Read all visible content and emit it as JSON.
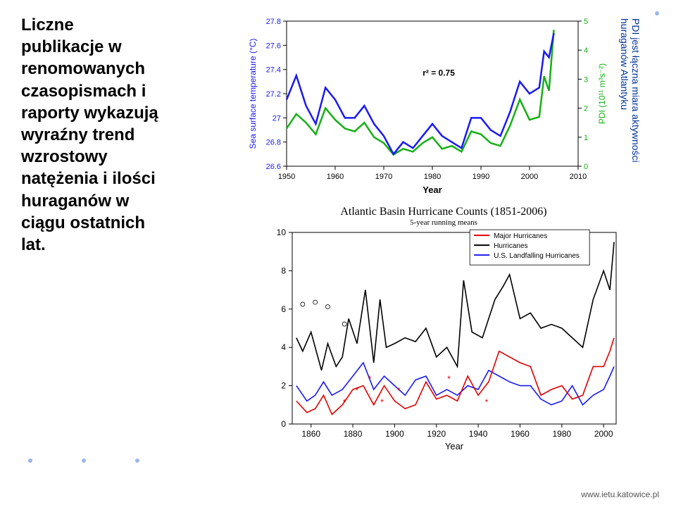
{
  "left_text": {
    "line1": "Liczne",
    "line2": "publikacje w",
    "line3": "renomowanych",
    "line4": "czasopismach i",
    "line5": "raporty wykazują",
    "line6": "wyraźny trend",
    "line7": "wzrostowy",
    "line8": "natężenia i ilości",
    "line9": "huraganów w",
    "line10": "ciągu ostatnich",
    "line11": "lat."
  },
  "vertical_note_line1": "PDI jest łączna miara aktywności",
  "vertical_note_line2": "huraganów Atlantyku",
  "chart1": {
    "ylabel_left": "Sea surface temperature (°C)",
    "ylabel_right": "PDI (10¹¹ m³s⁻²)",
    "xlabel": "Year",
    "r2_label": "r² = 0.75",
    "yticks_left": [
      26.6,
      26.8,
      27,
      27.2,
      27.4,
      27.6,
      27.8
    ],
    "yticks_right": [
      0,
      1,
      2,
      3,
      4,
      5
    ],
    "xticks": [
      1950,
      1960,
      1970,
      1980,
      1990,
      2000,
      2010
    ],
    "xlim": [
      1950,
      2010
    ],
    "sst_color": "#1a1af0",
    "pdi_color": "#15b015",
    "sst_series": [
      [
        1950,
        27.15
      ],
      [
        1952,
        27.35
      ],
      [
        1954,
        27.1
      ],
      [
        1956,
        26.95
      ],
      [
        1958,
        27.25
      ],
      [
        1960,
        27.15
      ],
      [
        1962,
        27.0
      ],
      [
        1964,
        27.0
      ],
      [
        1966,
        27.1
      ],
      [
        1968,
        26.95
      ],
      [
        1970,
        26.85
      ],
      [
        1972,
        26.7
      ],
      [
        1974,
        26.8
      ],
      [
        1976,
        26.75
      ],
      [
        1978,
        26.85
      ],
      [
        1980,
        26.95
      ],
      [
        1982,
        26.85
      ],
      [
        1984,
        26.8
      ],
      [
        1986,
        26.75
      ],
      [
        1988,
        27.0
      ],
      [
        1990,
        27.0
      ],
      [
        1992,
        26.9
      ],
      [
        1994,
        26.85
      ],
      [
        1996,
        27.05
      ],
      [
        1998,
        27.3
      ],
      [
        2000,
        27.2
      ],
      [
        2002,
        27.25
      ],
      [
        2003,
        27.55
      ],
      [
        2004,
        27.5
      ],
      [
        2005,
        27.7
      ]
    ],
    "pdi_series": [
      [
        1950,
        1.3
      ],
      [
        1952,
        1.8
      ],
      [
        1954,
        1.5
      ],
      [
        1956,
        1.1
      ],
      [
        1958,
        2.0
      ],
      [
        1960,
        1.6
      ],
      [
        1962,
        1.3
      ],
      [
        1964,
        1.2
      ],
      [
        1966,
        1.5
      ],
      [
        1968,
        1.0
      ],
      [
        1970,
        0.8
      ],
      [
        1972,
        0.4
      ],
      [
        1974,
        0.6
      ],
      [
        1976,
        0.5
      ],
      [
        1978,
        0.8
      ],
      [
        1980,
        1.0
      ],
      [
        1982,
        0.6
      ],
      [
        1984,
        0.7
      ],
      [
        1986,
        0.5
      ],
      [
        1988,
        1.2
      ],
      [
        1990,
        1.1
      ],
      [
        1992,
        0.8
      ],
      [
        1994,
        0.7
      ],
      [
        1996,
        1.4
      ],
      [
        1998,
        2.3
      ],
      [
        2000,
        1.6
      ],
      [
        2002,
        1.7
      ],
      [
        2003,
        3.1
      ],
      [
        2004,
        2.6
      ],
      [
        2005,
        4.7
      ]
    ]
  },
  "chart2": {
    "title": "Atlantic Basin Hurricane Counts (1851-2006)",
    "subtitle": "5-year running means",
    "xlabel": "Year",
    "xticks": [
      1860,
      1880,
      1900,
      1920,
      1940,
      1960,
      1980,
      2000
    ],
    "yticks": [
      0,
      2,
      4,
      6,
      8,
      10
    ],
    "xlim": [
      1851,
      2006
    ],
    "ylim": [
      0,
      10
    ],
    "legend": [
      {
        "label": "Major Hurricanes",
        "color": "#e00000"
      },
      {
        "label": "Hurricanes",
        "color": "#000000"
      },
      {
        "label": "U.S. Landfalling Hurricanes",
        "color": "#1a1af0"
      }
    ],
    "hurricanes_color": "#000000",
    "major_color": "#e00000",
    "landfall_color": "#1a1af0",
    "hurricanes": [
      [
        1853,
        4.5
      ],
      [
        1856,
        3.8
      ],
      [
        1860,
        4.8
      ],
      [
        1865,
        2.8
      ],
      [
        1868,
        4.2
      ],
      [
        1872,
        3.0
      ],
      [
        1875,
        3.5
      ],
      [
        1878,
        5.5
      ],
      [
        1882,
        4.2
      ],
      [
        1886,
        7.0
      ],
      [
        1890,
        3.2
      ],
      [
        1893,
        6.5
      ],
      [
        1896,
        4.0
      ],
      [
        1900,
        4.2
      ],
      [
        1905,
        4.5
      ],
      [
        1910,
        4.3
      ],
      [
        1915,
        5.0
      ],
      [
        1920,
        3.5
      ],
      [
        1925,
        4.0
      ],
      [
        1930,
        3.0
      ],
      [
        1933,
        7.5
      ],
      [
        1937,
        4.8
      ],
      [
        1942,
        4.5
      ],
      [
        1948,
        6.5
      ],
      [
        1952,
        7.2
      ],
      [
        1955,
        7.8
      ],
      [
        1960,
        5.5
      ],
      [
        1965,
        5.8
      ],
      [
        1970,
        5.0
      ],
      [
        1975,
        5.2
      ],
      [
        1980,
        5.0
      ],
      [
        1985,
        4.5
      ],
      [
        1990,
        4.0
      ],
      [
        1995,
        6.5
      ],
      [
        2000,
        8.0
      ],
      [
        2003,
        7.0
      ],
      [
        2005,
        9.5
      ]
    ],
    "major": [
      [
        1853,
        1.2
      ],
      [
        1858,
        0.6
      ],
      [
        1862,
        0.8
      ],
      [
        1866,
        1.5
      ],
      [
        1870,
        0.5
      ],
      [
        1875,
        1.0
      ],
      [
        1880,
        1.8
      ],
      [
        1885,
        2.0
      ],
      [
        1890,
        1.0
      ],
      [
        1895,
        2.0
      ],
      [
        1900,
        1.2
      ],
      [
        1905,
        0.8
      ],
      [
        1910,
        1.0
      ],
      [
        1915,
        2.2
      ],
      [
        1920,
        1.3
      ],
      [
        1925,
        1.5
      ],
      [
        1930,
        1.2
      ],
      [
        1935,
        2.5
      ],
      [
        1940,
        1.5
      ],
      [
        1945,
        2.2
      ],
      [
        1950,
        3.8
      ],
      [
        1955,
        3.5
      ],
      [
        1960,
        3.2
      ],
      [
        1965,
        3.0
      ],
      [
        1970,
        1.5
      ],
      [
        1975,
        1.8
      ],
      [
        1980,
        2.0
      ],
      [
        1985,
        1.3
      ],
      [
        1990,
        1.5
      ],
      [
        1995,
        3.0
      ],
      [
        2000,
        3.0
      ],
      [
        2003,
        3.8
      ],
      [
        2005,
        4.5
      ]
    ],
    "landfall": [
      [
        1853,
        2.0
      ],
      [
        1858,
        1.2
      ],
      [
        1862,
        1.5
      ],
      [
        1866,
        2.2
      ],
      [
        1870,
        1.5
      ],
      [
        1875,
        1.8
      ],
      [
        1880,
        2.5
      ],
      [
        1885,
        3.2
      ],
      [
        1890,
        1.8
      ],
      [
        1895,
        2.5
      ],
      [
        1900,
        2.0
      ],
      [
        1905,
        1.5
      ],
      [
        1910,
        2.3
      ],
      [
        1915,
        2.5
      ],
      [
        1920,
        1.5
      ],
      [
        1925,
        1.8
      ],
      [
        1930,
        1.5
      ],
      [
        1935,
        2.0
      ],
      [
        1940,
        1.8
      ],
      [
        1945,
        2.8
      ],
      [
        1950,
        2.5
      ],
      [
        1955,
        2.2
      ],
      [
        1960,
        2.0
      ],
      [
        1965,
        2.0
      ],
      [
        1970,
        1.3
      ],
      [
        1975,
        1.0
      ],
      [
        1980,
        1.2
      ],
      [
        1985,
        2.0
      ],
      [
        1990,
        1.0
      ],
      [
        1995,
        1.5
      ],
      [
        2000,
        1.8
      ],
      [
        2003,
        2.5
      ],
      [
        2005,
        3.0
      ]
    ]
  },
  "footer": "www.ietu.katowice.pl"
}
